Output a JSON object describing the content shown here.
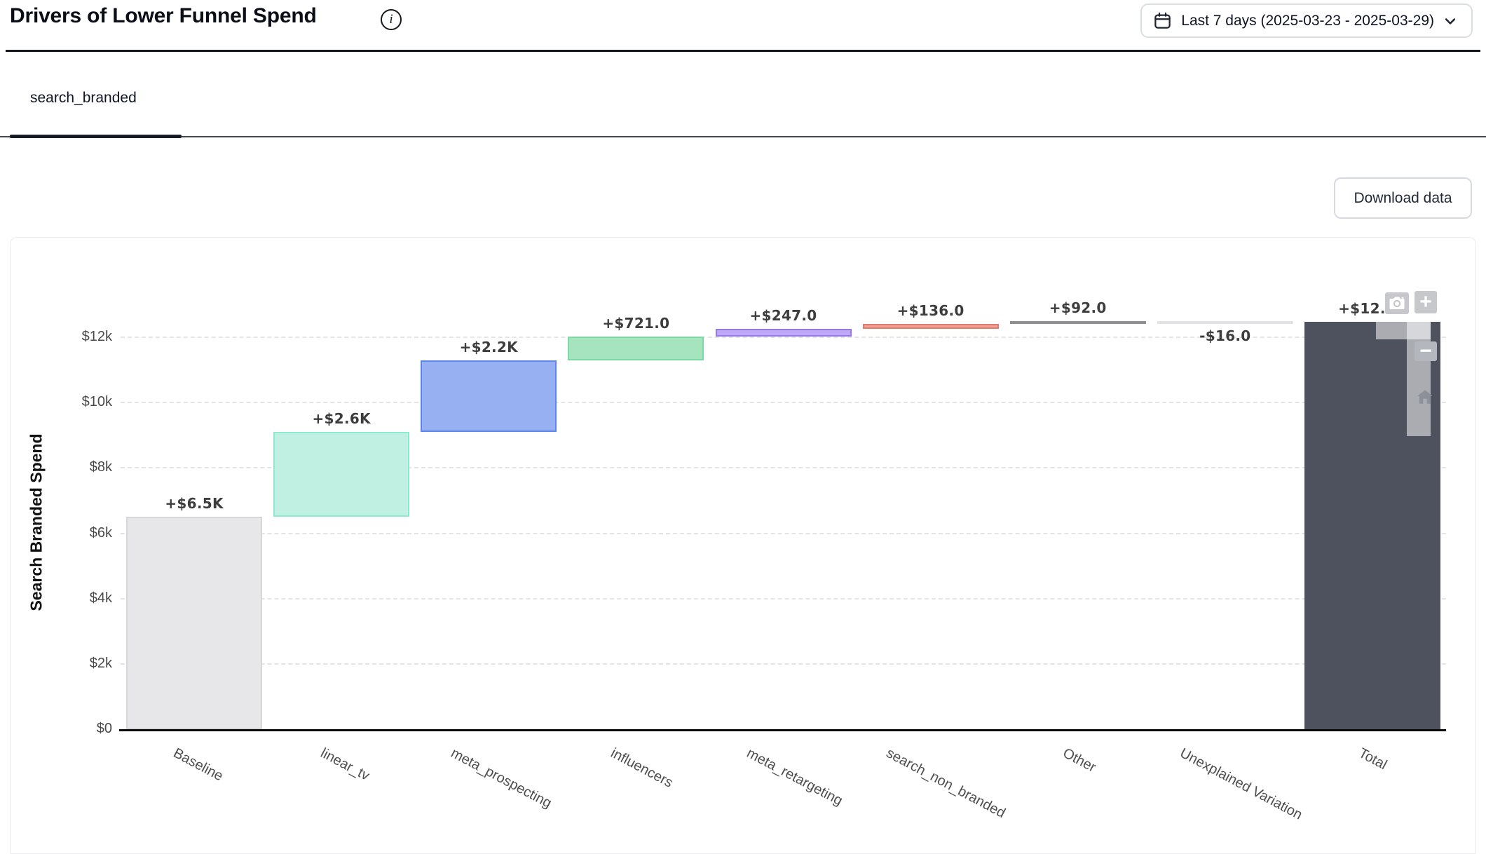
{
  "header": {
    "title": "Drivers of Lower Funnel Spend",
    "info_icon_glyph": "i",
    "date_range_label": "Last 7 days (2025-03-23 - 2025-03-29)"
  },
  "tabs": [
    {
      "label": "search_branded",
      "active": true
    }
  ],
  "toolbar": {
    "download_label": "Download data"
  },
  "modebar": {
    "buttons": [
      "camera-snapshot",
      "zoom-in",
      "zoom-out",
      "reset-axes-home"
    ],
    "zoom_in_glyph": "+",
    "zoom_out_glyph": "−"
  },
  "chart_data": {
    "type": "bar",
    "subtype": "waterfall",
    "title": "",
    "xlabel": "",
    "ylabel": "Search Branded Spend",
    "categories": [
      "Baseline",
      "linear_tv",
      "meta_prospecting",
      "influencers",
      "meta_retargeting",
      "search_non_branded",
      "Other",
      "Unexplained Variation",
      "Total"
    ],
    "measures": [
      "absolute",
      "relative",
      "relative",
      "relative",
      "relative",
      "relative",
      "relative",
      "relative",
      "total"
    ],
    "values": [
      6500,
      2600,
      2200,
      721,
      247,
      136,
      92,
      -16,
      12480
    ],
    "bar_labels": [
      "+$6.5K",
      "+$2.6K",
      "+$2.2K",
      "+$721.0",
      "+$247.0",
      "+$136.0",
      "+$92.0",
      "-$16.0",
      "+$12.5K"
    ],
    "cumulative_ends": [
      6500,
      9100,
      11300,
      12021,
      12268,
      12404,
      12496,
      12480,
      12480
    ],
    "ytick_values": [
      0,
      2000,
      4000,
      6000,
      8000,
      10000,
      12000
    ],
    "ytick_labels": [
      "$0",
      "$2k",
      "$4k",
      "$6k",
      "$8k",
      "$10k",
      "$12k"
    ],
    "ylim": [
      0,
      13400
    ],
    "grid": "horizontal-dashed",
    "legend": "none",
    "bar_fill_colors": [
      "#e7e7e9",
      "#bff0e2",
      "#96b0f1",
      "#a5e4bf",
      "#bfa8f5",
      "#f0a192",
      "#a9a9ab",
      "#ececee",
      "#4e525e"
    ],
    "bar_border_colors": [
      "#d7d7d9",
      "#8fe8d0",
      "#5c85ee",
      "#7cd8a5",
      "#9577ef",
      "#e3796a",
      "#8e8e90",
      "#e2e2e4",
      "#4e525e"
    ],
    "value_label_color": "#3d3d3d"
  }
}
